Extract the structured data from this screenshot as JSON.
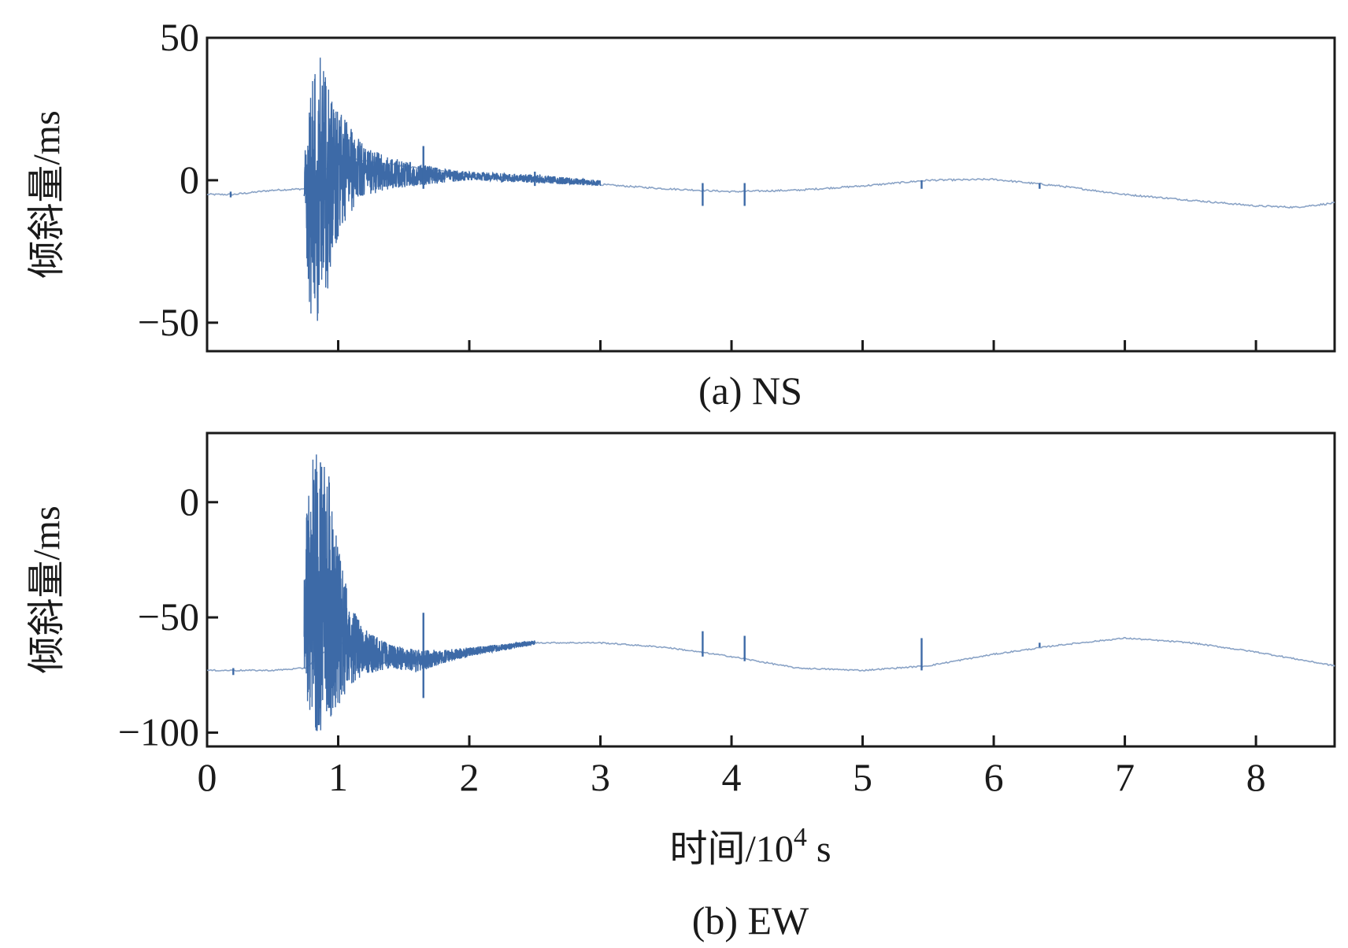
{
  "chart_data": [
    {
      "type": "line",
      "caption": "(a) NS",
      "ylabel": "倾斜量/ms",
      "xlabel": "",
      "x_unit_note": "时间/10^4 s",
      "xlim": [
        0,
        8.6
      ],
      "ylim": [
        -60,
        50
      ],
      "y_ticks": [
        50,
        0,
        -50
      ],
      "y_tick_labels": [
        "50",
        "0",
        "−50"
      ],
      "x_ticks": [
        1,
        2,
        3,
        4,
        5,
        6,
        7,
        8
      ],
      "x_tick_labels": [],
      "grid": false,
      "series": [
        {
          "color": "#3d6aa7",
          "baseline": {
            "x": [
              0.0,
              0.2,
              0.5,
              0.75,
              1.0,
              1.5,
              2.0,
              2.5,
              3.0,
              3.5,
              4.0,
              4.5,
              5.0,
              5.5,
              6.0,
              6.5,
              7.0,
              7.5,
              8.0,
              8.3,
              8.6
            ],
            "y": [
              -5,
              -5,
              -3.5,
              -3,
              8,
              5,
              2,
              0,
              -1.5,
              -3,
              -4,
              -3.5,
              -2,
              0,
              0.3,
              -2,
              -5,
              -7,
              -9,
              -9.5,
              -8
            ]
          },
          "envelope": {
            "x": [
              0.74,
              0.78,
              0.82,
              0.86,
              0.9,
              0.95,
              1.0,
              1.1,
              1.2,
              1.4,
              1.6,
              1.8,
              2.0,
              2.5,
              3.0
            ],
            "upper": [
              5,
              35,
              40,
              45,
              38,
              30,
              25,
              18,
              12,
              8,
              6,
              4,
              3,
              2,
              0
            ],
            "lower": [
              -10,
              -45,
              -52,
              -50,
              -45,
              -30,
              -20,
              -12,
              -6,
              -3,
              -2,
              -1,
              0,
              -1,
              -2
            ]
          },
          "spikes": [
            {
              "x": 0.18,
              "top": -4,
              "bottom": -6
            },
            {
              "x": 1.65,
              "top": 12,
              "bottom": -3
            },
            {
              "x": 2.5,
              "top": 3,
              "bottom": -2
            },
            {
              "x": 3.78,
              "top": -1,
              "bottom": -9
            },
            {
              "x": 4.1,
              "top": -1,
              "bottom": -9
            },
            {
              "x": 5.45,
              "top": 0,
              "bottom": -3
            },
            {
              "x": 6.35,
              "top": -1,
              "bottom": -3
            }
          ]
        }
      ]
    },
    {
      "type": "line",
      "caption": "(b) EW",
      "ylabel": "倾斜量/ms",
      "xlabel": "时间/10^4 s",
      "xlabel_main": "时间/10",
      "xlabel_exp": "4",
      "xlabel_unit": "s",
      "xlim": [
        0,
        8.6
      ],
      "ylim": [
        -106,
        30
      ],
      "y_ticks": [
        0,
        -50,
        -100
      ],
      "y_tick_labels": [
        "0",
        "−50",
        "−100"
      ],
      "x_ticks": [
        0,
        1,
        2,
        3,
        4,
        5,
        6,
        7,
        8
      ],
      "x_tick_labels": [
        "0",
        "1",
        "2",
        "3",
        "4",
        "5",
        "6",
        "7",
        "8"
      ],
      "grid": false,
      "series": [
        {
          "color": "#3d6aa7",
          "baseline": {
            "x": [
              0.0,
              0.2,
              0.5,
              0.75,
              1.0,
              1.3,
              1.7,
              2.0,
              2.5,
              3.0,
              3.5,
              4.0,
              4.5,
              5.0,
              5.5,
              6.0,
              6.5,
              7.0,
              7.5,
              8.0,
              8.6
            ],
            "y": [
              -73,
              -73,
              -73,
              -72,
              -60,
              -70,
              -68,
              -66,
              -61,
              -61,
              -63,
              -67,
              -72,
              -73,
              -71,
              -66,
              -62,
              -59,
              -61,
              -65,
              -71
            ]
          },
          "envelope": {
            "x": [
              0.74,
              0.78,
              0.82,
              0.86,
              0.9,
              0.95,
              1.0,
              1.1,
              1.2,
              1.4,
              1.6,
              1.8,
              2.0,
              2.5
            ],
            "upper": [
              -20,
              10,
              25,
              22,
              20,
              5,
              -20,
              -45,
              -55,
              -62,
              -64,
              -64,
              -63,
              -60
            ],
            "lower": [
              -80,
              -95,
              -100,
              -102,
              -98,
              -95,
              -90,
              -80,
              -75,
              -72,
              -74,
              -70,
              -67,
              -62
            ]
          },
          "spikes": [
            {
              "x": 0.2,
              "top": -72,
              "bottom": -75
            },
            {
              "x": 1.65,
              "top": -48,
              "bottom": -85
            },
            {
              "x": 3.78,
              "top": -56,
              "bottom": -67
            },
            {
              "x": 4.1,
              "top": -58,
              "bottom": -69
            },
            {
              "x": 5.45,
              "top": -59,
              "bottom": -73
            },
            {
              "x": 6.35,
              "top": -61,
              "bottom": -63
            }
          ]
        }
      ]
    }
  ]
}
